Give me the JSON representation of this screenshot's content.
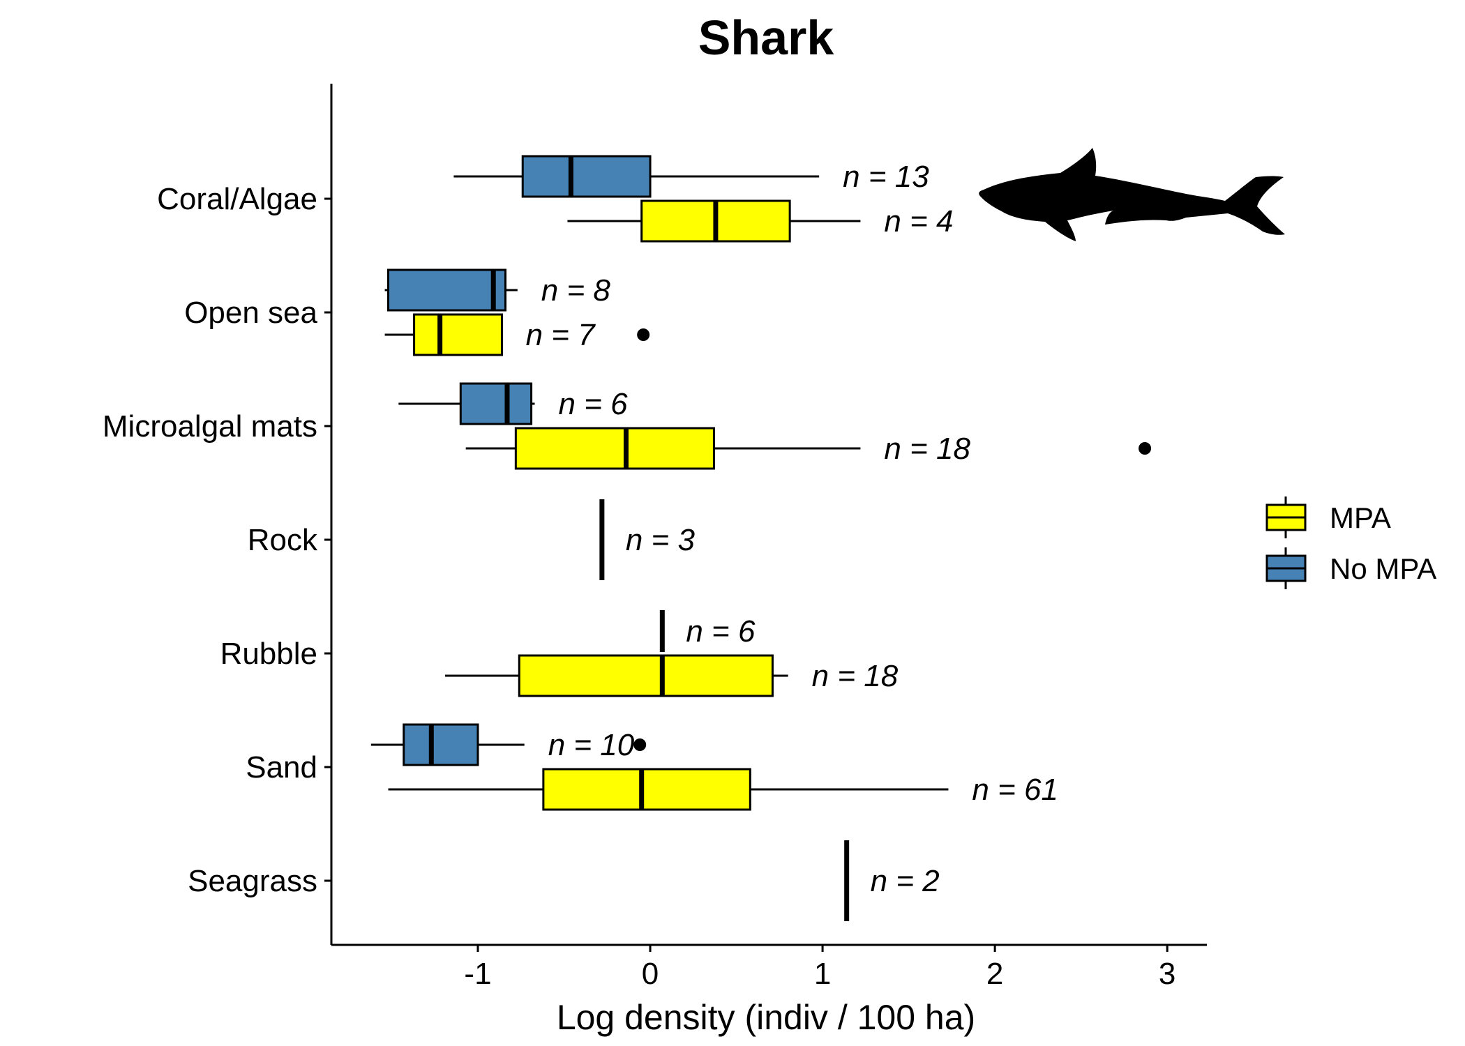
{
  "chart_data": {
    "type": "boxplot",
    "title": "Shark",
    "xlabel": "Log density (indiv / 100 ha)",
    "ylabel": "",
    "xlim": [
      -1.85,
      3.23
    ],
    "x_ticks": [
      -1,
      0,
      1,
      2,
      3
    ],
    "x_tick_labels": [
      "-1",
      "0",
      "1",
      "2",
      "3"
    ],
    "categories": [
      "Coral/Algae",
      "Open sea",
      "Microalgal mats",
      "Rock",
      "Rubble",
      "Sand",
      "Seagrass"
    ],
    "legend": {
      "position": "right",
      "entries": [
        {
          "name": "MPA",
          "color": "#FFFF00"
        },
        {
          "name": "No MPA",
          "color": "#4682B4"
        }
      ]
    },
    "series": [
      {
        "name": "No MPA",
        "color": "#4682B4",
        "boxes": [
          {
            "category": "Coral/Algae",
            "whisker_low": -1.14,
            "q1": -0.74,
            "median": -0.46,
            "q3": 0.0,
            "whisker_high": 0.98,
            "outliers": [],
            "n_label": "n = 13"
          },
          {
            "category": "Open sea",
            "whisker_low": -1.54,
            "q1": -1.52,
            "median": -0.91,
            "q3": -0.84,
            "whisker_high": -0.77,
            "outliers": [],
            "n_label": "n = 8"
          },
          {
            "category": "Microalgal mats",
            "whisker_low": -1.46,
            "q1": -1.1,
            "median": -0.83,
            "q3": -0.69,
            "whisker_high": -0.67,
            "outliers": [],
            "n_label": "n = 6"
          },
          {
            "category": "Rubble",
            "whisker_low": 0.07,
            "q1": 0.07,
            "median": 0.07,
            "q3": 0.07,
            "whisker_high": 0.07,
            "outliers": [],
            "n_label": "n = 6"
          },
          {
            "category": "Sand",
            "whisker_low": -1.62,
            "q1": -1.43,
            "median": -1.27,
            "q3": -1.0,
            "whisker_high": -0.73,
            "outliers": [
              -0.06
            ],
            "n_label": "n = 10"
          }
        ]
      },
      {
        "name": "MPA",
        "color": "#FFFF00",
        "boxes": [
          {
            "category": "Coral/Algae",
            "whisker_low": -0.48,
            "q1": -0.05,
            "median": 0.38,
            "q3": 0.81,
            "whisker_high": 1.22,
            "outliers": [],
            "n_label": "n = 4"
          },
          {
            "category": "Open sea",
            "whisker_low": -1.54,
            "q1": -1.37,
            "median": -1.22,
            "q3": -0.86,
            "whisker_high": -0.86,
            "outliers": [
              -0.04
            ],
            "n_label": "n = 7"
          },
          {
            "category": "Microalgal mats",
            "whisker_low": -1.07,
            "q1": -0.78,
            "median": -0.14,
            "q3": 0.37,
            "whisker_high": 1.22,
            "outliers": [
              2.87
            ],
            "n_label": "n = 18"
          },
          {
            "category": "Rock",
            "whisker_low": -0.28,
            "q1": -0.28,
            "median": -0.28,
            "q3": -0.28,
            "whisker_high": -0.28,
            "outliers": [],
            "n_label": "n = 3"
          },
          {
            "category": "Rubble",
            "whisker_low": -1.19,
            "q1": -0.76,
            "median": 0.07,
            "q3": 0.71,
            "whisker_high": 0.8,
            "outliers": [],
            "n_label": "n = 18"
          },
          {
            "category": "Sand",
            "whisker_low": -1.52,
            "q1": -0.62,
            "median": -0.05,
            "q3": 0.58,
            "whisker_high": 1.73,
            "outliers": [],
            "n_label": "n = 61"
          },
          {
            "category": "Seagrass",
            "whisker_low": 1.14,
            "q1": 1.14,
            "median": 1.14,
            "q3": 1.14,
            "whisker_high": 1.14,
            "outliers": [],
            "n_label": "n = 2"
          }
        ]
      }
    ]
  },
  "icon": "shark-silhouette-icon"
}
